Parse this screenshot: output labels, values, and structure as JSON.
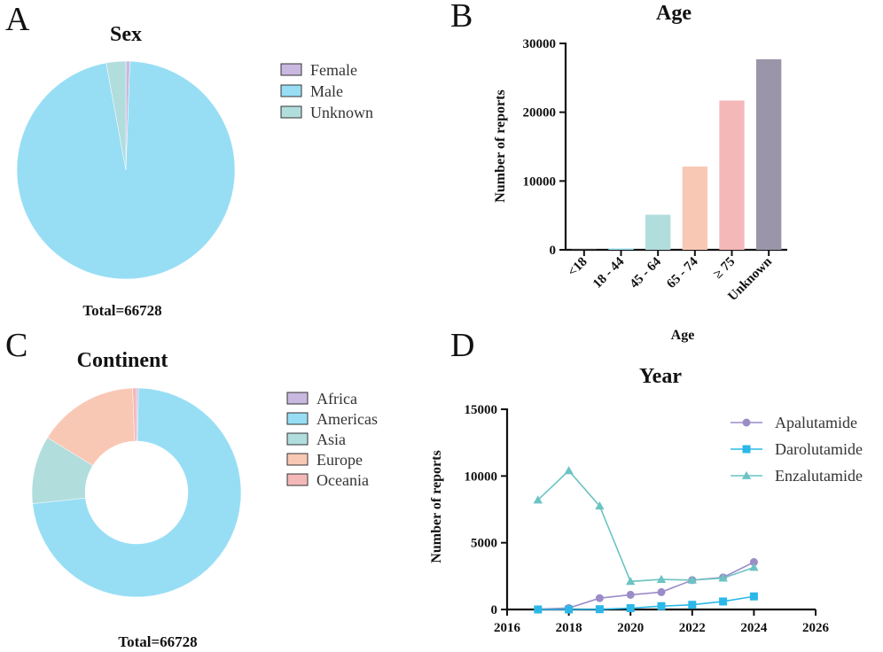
{
  "panels": {
    "a": "A",
    "b": "B",
    "c": "C",
    "d": "D"
  },
  "chart_data": [
    {
      "id": "sex",
      "type": "pie",
      "title": "Sex",
      "total_label": "Total=66728",
      "slices": [
        {
          "label": "Female",
          "value": 0.6,
          "color": "#c9b8df"
        },
        {
          "label": "Male",
          "value": 96.5,
          "color": "#97def5"
        },
        {
          "label": "Unknown",
          "value": 2.9,
          "color": "#b1dddd"
        }
      ],
      "value_unit": "percent"
    },
    {
      "id": "age",
      "type": "bar",
      "title": "Age",
      "xlabel": "Age",
      "ylabel": "Number of reports",
      "ylim": [
        0,
        30000
      ],
      "yticks": [
        "0",
        "10000",
        "20000",
        "30000"
      ],
      "ytick_values": [
        0,
        10000,
        20000,
        30000
      ],
      "categories": [
        "<18",
        "18 - 44",
        "45 - 64",
        "65 - 74",
        "≥ 75",
        "Unknown"
      ],
      "values": [
        30,
        180,
        5100,
        12100,
        21700,
        27700
      ],
      "colors": [
        "#c9b8df",
        "#97def5",
        "#b1dddd",
        "#f9c8b5",
        "#f5b8b8",
        "#9a95a8"
      ]
    },
    {
      "id": "continent",
      "type": "pie",
      "donut": true,
      "title": "Continent",
      "total_label": "Total=66728",
      "slices": [
        {
          "label": "Africa",
          "value": 0.3,
          "color": "#c9b8df"
        },
        {
          "label": "Americas",
          "value": 73.0,
          "color": "#97def5"
        },
        {
          "label": "Asia",
          "value": 10.5,
          "color": "#b1dddd"
        },
        {
          "label": "Europe",
          "value": 15.6,
          "color": "#f9c8b5"
        },
        {
          "label": "Oceania",
          "value": 0.6,
          "color": "#f5b8b8"
        }
      ],
      "value_unit": "percent"
    },
    {
      "id": "year",
      "type": "line",
      "title": "Year",
      "xlabel": "",
      "ylabel": "Number of reports",
      "xlim": [
        2016,
        2026
      ],
      "ylim": [
        0,
        15000
      ],
      "xticks": [
        "2016",
        "2018",
        "2020",
        "2022",
        "2024",
        "2026"
      ],
      "xtick_values": [
        2016,
        2018,
        2020,
        2022,
        2024,
        2026
      ],
      "yticks": [
        "0",
        "5000",
        "10000",
        "15000"
      ],
      "ytick_values": [
        0,
        5000,
        10000,
        15000
      ],
      "x": [
        2017,
        2018,
        2019,
        2020,
        2021,
        2022,
        2023,
        2024
      ],
      "series": [
        {
          "name": "Apalutamide",
          "marker": "circle",
          "color": "#9b8cc8",
          "values": [
            20,
            110,
            850,
            1100,
            1300,
            2200,
            2400,
            3550
          ]
        },
        {
          "name": "Darolutamide",
          "marker": "square",
          "color": "#2bb8e8",
          "values": [
            0,
            0,
            20,
            100,
            250,
            350,
            600,
            980
          ]
        },
        {
          "name": "Enzalutamide",
          "marker": "triangle",
          "color": "#6cc3c3",
          "values": [
            8200,
            10400,
            7750,
            2100,
            2250,
            2200,
            2350,
            3150
          ]
        }
      ]
    }
  ]
}
